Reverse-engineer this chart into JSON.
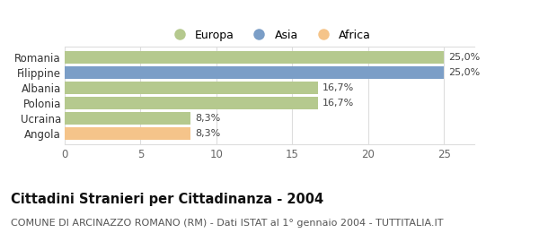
{
  "categories": [
    "Angola",
    "Ucraina",
    "Polonia",
    "Albania",
    "Filippine",
    "Romania"
  ],
  "values": [
    8.3,
    8.3,
    16.7,
    16.7,
    25.0,
    25.0
  ],
  "colors": [
    "#f5c48a",
    "#b5c98e",
    "#b5c98e",
    "#b5c98e",
    "#7b9ec7",
    "#b5c98e"
  ],
  "labels": [
    "8,3%",
    "8,3%",
    "16,7%",
    "16,7%",
    "25,0%",
    "25,0%"
  ],
  "legend": [
    {
      "label": "Europa",
      "color": "#b5c98e"
    },
    {
      "label": "Asia",
      "color": "#7b9ec7"
    },
    {
      "label": "Africa",
      "color": "#f5c48a"
    }
  ],
  "xlim": [
    0,
    27
  ],
  "xticks": [
    0,
    5,
    10,
    15,
    20,
    25
  ],
  "title": "Cittadini Stranieri per Cittadinanza - 2004",
  "subtitle": "COMUNE DI ARCINAZZO ROMANO (RM) - Dati ISTAT al 1° gennaio 2004 - TUTTITALIA.IT",
  "bg_color": "#ffffff",
  "bar_height": 0.82,
  "title_fontsize": 10.5,
  "subtitle_fontsize": 8,
  "label_fontsize": 8,
  "tick_fontsize": 8.5,
  "legend_fontsize": 9,
  "grid_color": "#dddddd",
  "label_color": "#444444",
  "tick_color": "#666666"
}
